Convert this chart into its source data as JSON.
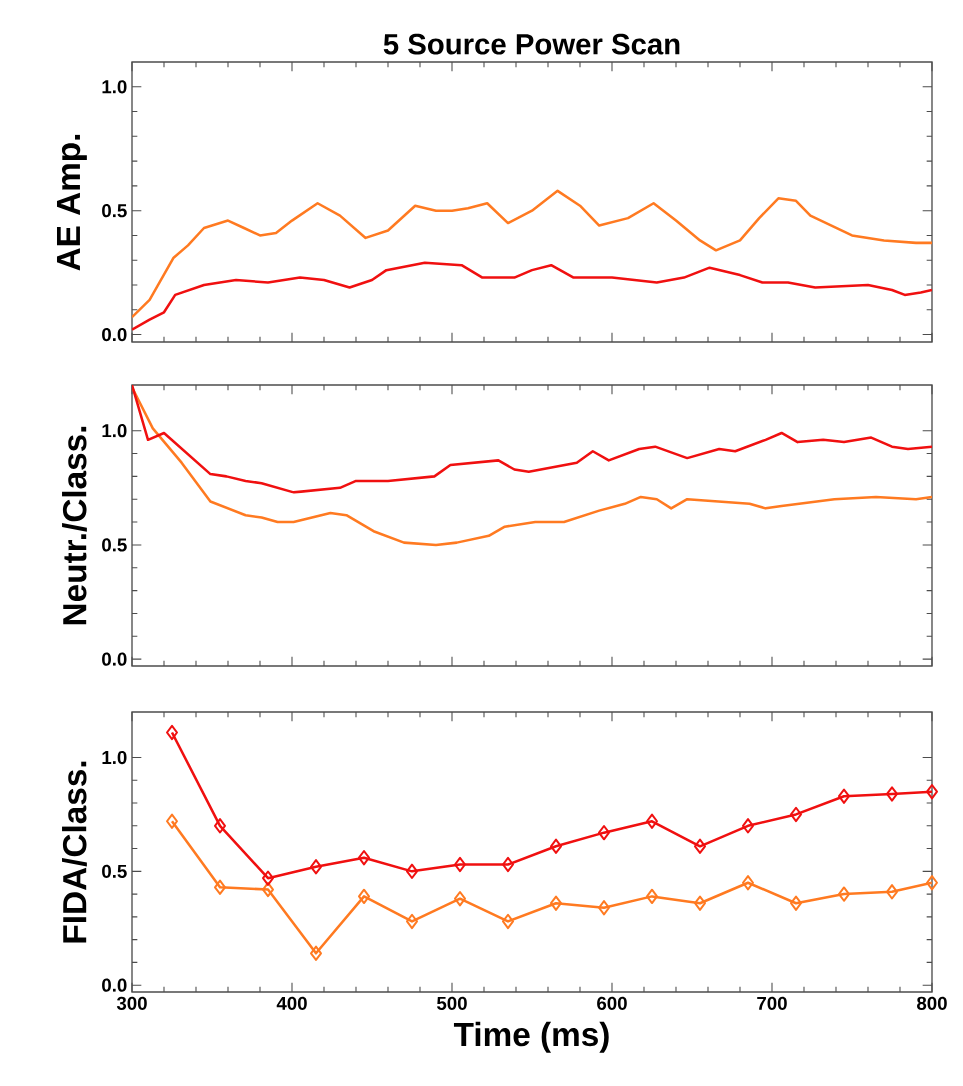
{
  "chart_data": [
    {
      "type": "line",
      "title": "5 Source Power Scan",
      "ylabel": "AE Amp.",
      "xlim": [
        300,
        800
      ],
      "xticks": [
        300,
        400,
        500,
        600,
        700,
        800
      ],
      "ylim": [
        -0.03,
        1.1
      ],
      "yticks": [
        {
          "value": 0,
          "label": "0.0"
        },
        {
          "value": 0.5,
          "label": "0.5"
        },
        {
          "value": 1,
          "label": "1.0"
        }
      ],
      "tick_labels": "y",
      "marker": "none",
      "series": [
        {
          "color": "#ff7a21",
          "x": [
            300,
            311,
            326,
            335,
            345,
            360,
            370,
            380,
            390,
            400,
            416,
            430,
            446,
            460,
            477,
            490,
            500,
            510,
            522,
            535,
            550,
            566,
            580,
            592,
            610,
            626,
            640,
            655,
            665,
            680,
            692,
            704,
            715,
            724,
            750,
            770,
            790,
            800
          ],
          "values": [
            0.07,
            0.14,
            0.31,
            0.36,
            0.43,
            0.46,
            0.43,
            0.4,
            0.41,
            0.46,
            0.53,
            0.48,
            0.39,
            0.42,
            0.52,
            0.5,
            0.5,
            0.51,
            0.53,
            0.45,
            0.5,
            0.58,
            0.52,
            0.44,
            0.47,
            0.53,
            0.46,
            0.38,
            0.34,
            0.38,
            0.47,
            0.55,
            0.54,
            0.48,
            0.4,
            0.38,
            0.37,
            0.37
          ]
        },
        {
          "color": "#f01010",
          "x": [
            300,
            311,
            320,
            327,
            345,
            365,
            385,
            405,
            420,
            436,
            450,
            459,
            483,
            506,
            519,
            539,
            550,
            562,
            576,
            600,
            628,
            645,
            661,
            680,
            694,
            710,
            727,
            760,
            775,
            783,
            793,
            800
          ],
          "values": [
            0.02,
            0.06,
            0.09,
            0.16,
            0.2,
            0.22,
            0.21,
            0.23,
            0.22,
            0.19,
            0.22,
            0.26,
            0.29,
            0.28,
            0.23,
            0.23,
            0.26,
            0.28,
            0.23,
            0.23,
            0.21,
            0.23,
            0.27,
            0.24,
            0.21,
            0.21,
            0.19,
            0.2,
            0.18,
            0.16,
            0.17,
            0.18
          ]
        }
      ]
    },
    {
      "type": "line",
      "ylabel": "Neutr./Class.",
      "xlim": [
        300,
        800
      ],
      "xticks": [
        300,
        400,
        500,
        600,
        700,
        800
      ],
      "ylim": [
        -0.03,
        1.2
      ],
      "yticks": [
        {
          "value": 0,
          "label": "0.0"
        },
        {
          "value": 0.5,
          "label": "0.5"
        },
        {
          "value": 1,
          "label": "1.0"
        }
      ],
      "tick_labels": "y",
      "marker": "none",
      "series": [
        {
          "color": "#ff7a21",
          "x": [
            300,
            313,
            331,
            349,
            371,
            381,
            391,
            401,
            424,
            434,
            451,
            470,
            490,
            503,
            523,
            533,
            552,
            570,
            592,
            608,
            618,
            628,
            637,
            647,
            686,
            696,
            706,
            739,
            765,
            790,
            800
          ],
          "values": [
            1.19,
            1.01,
            0.86,
            0.69,
            0.63,
            0.62,
            0.6,
            0.6,
            0.64,
            0.63,
            0.56,
            0.51,
            0.5,
            0.51,
            0.54,
            0.58,
            0.6,
            0.6,
            0.65,
            0.68,
            0.71,
            0.7,
            0.66,
            0.7,
            0.68,
            0.66,
            0.67,
            0.7,
            0.71,
            0.7,
            0.71
          ]
        },
        {
          "color": "#f01010",
          "x": [
            300,
            310,
            320,
            349,
            359,
            371,
            381,
            401,
            430,
            440,
            460,
            489,
            499,
            529,
            539,
            548,
            578,
            588,
            598,
            617,
            627,
            647,
            667,
            677,
            696,
            706,
            716,
            732,
            745,
            762,
            775,
            785,
            800
          ],
          "values": [
            1.2,
            0.96,
            0.99,
            0.81,
            0.8,
            0.78,
            0.77,
            0.73,
            0.75,
            0.78,
            0.78,
            0.8,
            0.85,
            0.87,
            0.83,
            0.82,
            0.86,
            0.91,
            0.87,
            0.92,
            0.93,
            0.88,
            0.92,
            0.91,
            0.96,
            0.99,
            0.95,
            0.96,
            0.95,
            0.97,
            0.93,
            0.92,
            0.93
          ]
        }
      ]
    },
    {
      "type": "line",
      "ylabel": "FIDA/Class.",
      "xlabel": "Time (ms)",
      "xlim": [
        300,
        800
      ],
      "xticks": [
        300,
        400,
        500,
        600,
        700,
        800
      ],
      "ylim": [
        -0.03,
        1.2
      ],
      "yticks": [
        {
          "value": 0,
          "label": "0.0"
        },
        {
          "value": 0.5,
          "label": "0.5"
        },
        {
          "value": 1,
          "label": "1.0"
        }
      ],
      "marker": "diamond",
      "series": [
        {
          "color": "#ff7a21",
          "x": [
            325,
            355,
            385,
            415,
            445,
            475,
            505,
            535,
            565,
            595,
            625,
            655,
            685,
            715,
            745,
            775,
            800
          ],
          "values": [
            0.72,
            0.43,
            0.42,
            0.14,
            0.39,
            0.28,
            0.38,
            0.28,
            0.36,
            0.34,
            0.39,
            0.36,
            0.45,
            0.36,
            0.4,
            0.41,
            0.45
          ]
        },
        {
          "color": "#f01010",
          "x": [
            325,
            355,
            385,
            415,
            445,
            475,
            505,
            535,
            565,
            595,
            625,
            655,
            685,
            715,
            745,
            775,
            800
          ],
          "values": [
            1.11,
            0.7,
            0.47,
            0.52,
            0.56,
            0.5,
            0.53,
            0.53,
            0.61,
            0.67,
            0.72,
            0.61,
            0.7,
            0.75,
            0.83,
            0.84,
            0.85
          ]
        }
      ]
    }
  ]
}
